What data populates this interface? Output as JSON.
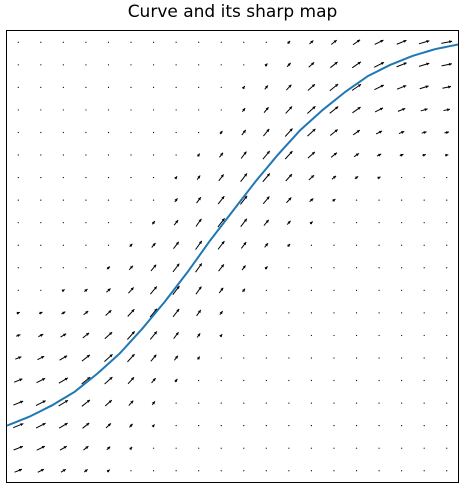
{
  "chart_data": {
    "type": "quiver",
    "title": "Curve and its sharp map",
    "xlabel": "",
    "ylabel": "",
    "grid": false,
    "axis_ticks": false,
    "curve": {
      "description_of_shape": "sigmoid",
      "color": "#1f77b4",
      "x": [
        0.0,
        0.05,
        0.1,
        0.15,
        0.2,
        0.25,
        0.3,
        0.35,
        0.4,
        0.45,
        0.5,
        0.55,
        0.6,
        0.65,
        0.7,
        0.75,
        0.8,
        0.85,
        0.9,
        0.95,
        1.0
      ],
      "y": [
        0.125,
        0.145,
        0.17,
        0.2,
        0.24,
        0.285,
        0.34,
        0.4,
        0.465,
        0.535,
        0.6,
        0.665,
        0.725,
        0.78,
        0.825,
        0.865,
        0.9,
        0.925,
        0.945,
        0.96,
        0.97
      ]
    },
    "vector_field": {
      "grid_cols": 20,
      "grid_rows": 20,
      "x_range": [
        0.0,
        1.0
      ],
      "y_range": [
        0.0,
        1.0
      ],
      "arrow_color": "#000000"
    }
  }
}
